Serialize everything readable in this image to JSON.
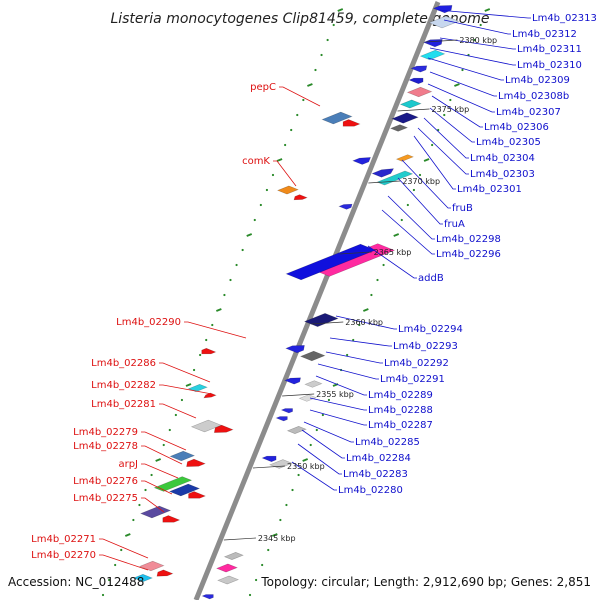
{
  "title": "Listeria monocytogenes Clip81459, complete genome",
  "footer": {
    "accession": "Accession: NC_012488",
    "topology": "Topology: circular; Length: 2,912,690 bp; Genes: 2,851"
  },
  "colors": {
    "forward_label": "#1010cc",
    "reverse_label": "#dd1111",
    "backbone": "#8c8c8c",
    "tick": "#2a8a2a"
  },
  "scale_ticks": [
    "2380 kbp",
    "2375 kbp",
    "2370 kbp",
    "2365 kbp",
    "2360 kbp",
    "2355 kbp",
    "2350 kbp",
    "2345 kbp"
  ],
  "right_labels": [
    "Lm4b_02313",
    "Lm4b_02312",
    "Lm4b_02311",
    "Lm4b_02310",
    "Lm4b_02309",
    "Lm4b_02308b",
    "Lm4b_02307",
    "Lm4b_02306",
    "Lm4b_02305",
    "Lm4b_02304",
    "Lm4b_02303",
    "Lm4b_02301",
    "fruB",
    "fruA",
    "Lm4b_02298",
    "Lm4b_02296",
    "addB",
    "Lm4b_02294",
    "Lm4b_02293",
    "Lm4b_02292",
    "Lm4b_02291",
    "Lm4b_02289",
    "Lm4b_02288",
    "Lm4b_02287",
    "Lm4b_02285",
    "Lm4b_02284",
    "Lm4b_02283",
    "Lm4b_02280"
  ],
  "left_labels": [
    "pepC",
    "comK",
    "Lm4b_02290",
    "Lm4b_02286",
    "Lm4b_02282",
    "Lm4b_02281",
    "Lm4b_02279",
    "Lm4b_02278",
    "arpJ",
    "Lm4b_02276",
    "Lm4b_02275",
    "Lm4b_02271",
    "Lm4b_02270"
  ]
}
